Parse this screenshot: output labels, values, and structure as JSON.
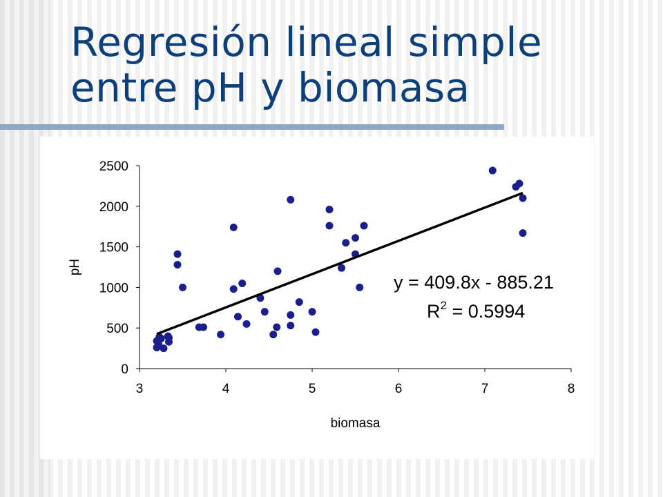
{
  "slide": {
    "title_line1": "Regresión lineal simple",
    "title_line2": "entre pH y biomasa"
  },
  "colors": {
    "title": "#0d3f7a",
    "rule": "#8fa6c8",
    "points": "#1a1f8c",
    "trendline": "#000000"
  },
  "chart_data": {
    "type": "scatter",
    "xlabel": "biomasa",
    "ylabel": "pH",
    "xlim": [
      3,
      8
    ],
    "ylim": [
      0,
      2500
    ],
    "xticks": [
      "3",
      "4",
      "5",
      "6",
      "7",
      "8"
    ],
    "yticks": [
      "0",
      "500",
      "1000",
      "1500",
      "2000",
      "2500"
    ],
    "grid": false,
    "legend": "none",
    "points": [
      [
        3.2,
        340
      ],
      [
        3.2,
        260
      ],
      [
        3.22,
        300
      ],
      [
        3.23,
        390
      ],
      [
        3.25,
        370
      ],
      [
        3.28,
        250
      ],
      [
        3.33,
        400
      ],
      [
        3.34,
        380
      ],
      [
        3.34,
        330
      ],
      [
        3.44,
        1410
      ],
      [
        3.44,
        1280
      ],
      [
        3.5,
        1000
      ],
      [
        3.69,
        510
      ],
      [
        3.74,
        510
      ],
      [
        3.94,
        420
      ],
      [
        4.09,
        1740
      ],
      [
        4.09,
        980
      ],
      [
        4.14,
        640
      ],
      [
        4.19,
        1050
      ],
      [
        4.24,
        550
      ],
      [
        4.4,
        870
      ],
      [
        4.45,
        700
      ],
      [
        4.55,
        420
      ],
      [
        4.59,
        510
      ],
      [
        4.6,
        1200
      ],
      [
        4.75,
        2080
      ],
      [
        4.75,
        530
      ],
      [
        4.75,
        660
      ],
      [
        4.85,
        820
      ],
      [
        5.0,
        700
      ],
      [
        5.04,
        450
      ],
      [
        5.2,
        1960
      ],
      [
        5.2,
        1760
      ],
      [
        5.34,
        1240
      ],
      [
        5.39,
        1550
      ],
      [
        5.5,
        1610
      ],
      [
        5.5,
        1410
      ],
      [
        5.55,
        1000
      ],
      [
        5.6,
        1760
      ],
      [
        7.09,
        2440
      ],
      [
        7.36,
        2240
      ],
      [
        7.4,
        2280
      ],
      [
        7.44,
        2100
      ],
      [
        7.44,
        1670
      ]
    ],
    "trendline": {
      "slope": 409.8,
      "intercept": -885.21,
      "x_from": 3.2,
      "x_to": 7.44
    },
    "annotations": {
      "equation": "y = 409.8x - 885.21",
      "r2_prefix": "R",
      "r2_exp": "2",
      "r2_value": " = 0.5994"
    }
  }
}
